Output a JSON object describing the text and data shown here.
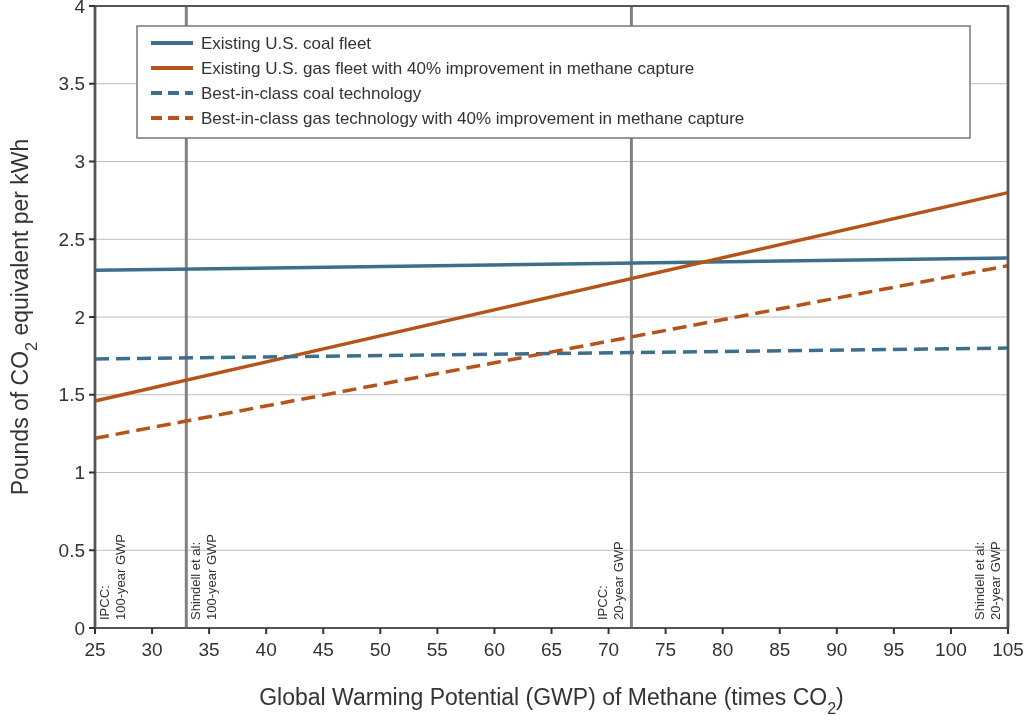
{
  "chart_data": {
    "type": "line",
    "xlabel": "Global Warming Potential (GWP) of Methane (times CO$_{2}$)",
    "ylabel": "Pounds of CO$_{2}$ equivalent per kWh",
    "x": [
      25,
      105
    ],
    "series": [
      {
        "name": "Existing U.S. coal fleet",
        "color": "#3d6f8c",
        "values": [
          2.3,
          2.38
        ],
        "line_style": "solid"
      },
      {
        "name": "Existing U.S. gas fleet with 40% improvement in methane capture",
        "color": "#b5541a",
        "values": [
          1.46,
          2.8
        ],
        "line_style": "solid"
      },
      {
        "name": "Best-in-class coal technology",
        "color": "#3d6f8c",
        "values": [
          1.73,
          1.8
        ],
        "line_style": "dashed"
      },
      {
        "name": "Best-in-class gas technology with 40% improvement in methane capture",
        "color": "#b5541a",
        "values": [
          1.22,
          2.33
        ],
        "line_style": "dashed"
      }
    ],
    "xlim": [
      25,
      105
    ],
    "xticks": [
      25,
      30,
      35,
      40,
      45,
      50,
      55,
      60,
      65,
      70,
      75,
      80,
      85,
      90,
      95,
      100,
      105
    ],
    "ylim": [
      0,
      4
    ],
    "yticks": [
      0,
      0.5,
      1,
      1.5,
      2,
      2.5,
      3,
      3.5,
      4
    ],
    "grid": "y",
    "legend": "top left",
    "marker": "none",
    "ref_lines": [
      {
        "axis": "x",
        "value": 25,
        "color": "#808080"
      },
      {
        "axis": "x",
        "value": 33,
        "color": "#808080"
      },
      {
        "axis": "x",
        "value": 72,
        "color": "#808080"
      },
      {
        "axis": "x",
        "value": 105,
        "color": "#808080"
      }
    ],
    "annotations": [
      {
        "text": "IPCC:\n100-year GWP",
        "x": 25,
        "y": 0
      },
      {
        "text": "Shindell et al:\n100-year GWP",
        "x": 33,
        "y": 0
      },
      {
        "text": "IPCC:\n20-year GWP",
        "x": 72,
        "y": 0
      },
      {
        "text": "Shindell et al:\n20-year GWP",
        "x": 105,
        "y": 0
      }
    ]
  }
}
